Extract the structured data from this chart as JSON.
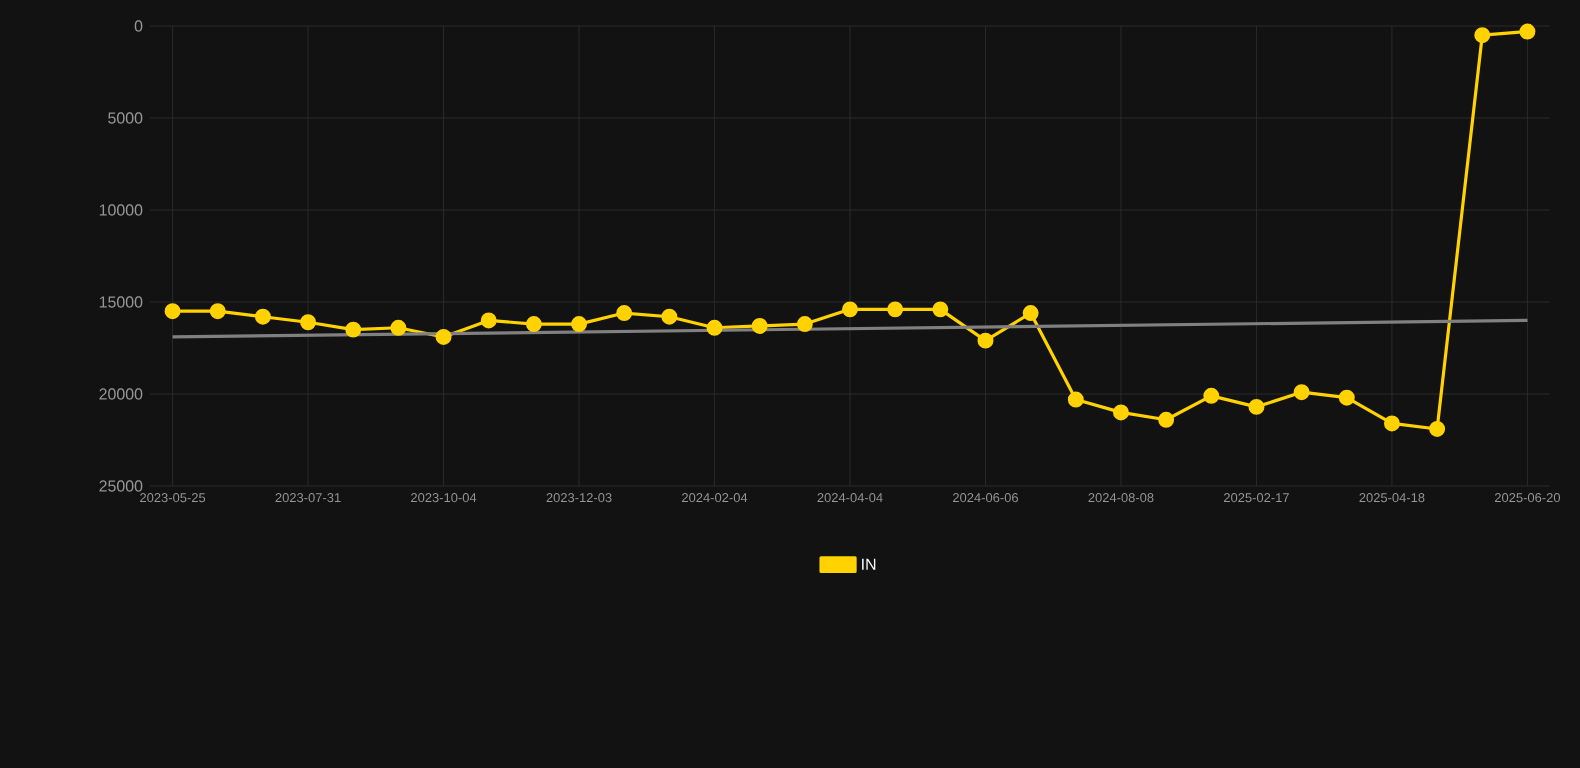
{
  "chart_data": {
    "type": "line",
    "categories": [
      "2023-05-25",
      null,
      null,
      "2023-07-31",
      null,
      null,
      "2023-10-04",
      null,
      null,
      "2023-12-03",
      null,
      null,
      "2024-02-04",
      null,
      null,
      "2024-04-04",
      null,
      null,
      "2024-06-06",
      null,
      null,
      "2024-08-08",
      null,
      null,
      "2025-02-17",
      null,
      null,
      "2025-04-18",
      null,
      null,
      "2025-06-20"
    ],
    "series": [
      {
        "name": "IN",
        "color": "#ffd200",
        "values": [
          15500,
          15500,
          15800,
          16100,
          16500,
          16400,
          16900,
          16000,
          16200,
          16200,
          15600,
          15800,
          16400,
          16300,
          16200,
          15400,
          15400,
          15400,
          17100,
          15600,
          20300,
          21000,
          21400,
          20100,
          20700,
          19900,
          20200,
          21600,
          21900,
          500,
          300
        ]
      },
      {
        "type": "line",
        "color": "#808080",
        "marker": "none",
        "values": [
          16900,
          null,
          null,
          null,
          null,
          null,
          null,
          null,
          null,
          null,
          null,
          null,
          null,
          null,
          null,
          null,
          null,
          null,
          null,
          null,
          null,
          null,
          null,
          null,
          null,
          null,
          null,
          null,
          null,
          null,
          16000
        ]
      }
    ],
    "ylim": [
      25000,
      0
    ],
    "yticks": [
      0,
      5000,
      10000,
      15000,
      20000,
      25000
    ],
    "grid": true,
    "legend": "bottom",
    "marker": "circle",
    "line_style": "solid"
  }
}
